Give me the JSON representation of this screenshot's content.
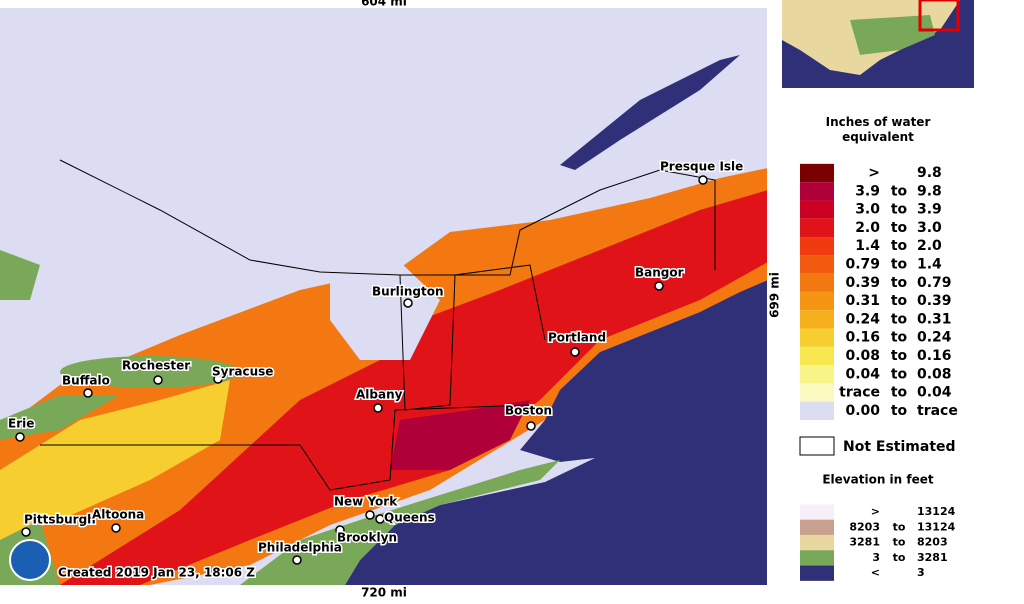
{
  "map": {
    "scale_top": "604 mi",
    "scale_bottom": "720 mi",
    "scale_right": "699 mi",
    "credit": "Created 2019 Jan 23, 18:06 Z",
    "cities": [
      "Presque Isle",
      "Bangor",
      "Burlington",
      "Portland",
      "Rochester",
      "Syracuse",
      "Buffalo",
      "Albany",
      "Boston",
      "Erie",
      "New York",
      "Queens",
      "Pittsburgh",
      "Altoona",
      "Brooklyn",
      "Philadelphia"
    ]
  },
  "legend": {
    "title": "Inches of water equivalent",
    "rows": [
      {
        "low": ">",
        "sep": "",
        "high": "9.8",
        "color": "#7a0000"
      },
      {
        "low": "3.9",
        "sep": "to",
        "high": "9.8",
        "color": "#b0003a"
      },
      {
        "low": "3.0",
        "sep": "to",
        "high": "3.9",
        "color": "#cc0022"
      },
      {
        "low": "2.0",
        "sep": "to",
        "high": "3.0",
        "color": "#e01418"
      },
      {
        "low": "1.4",
        "sep": "to",
        "high": "2.0",
        "color": "#f03a10"
      },
      {
        "low": "0.79",
        "sep": "to",
        "high": "1.4",
        "color": "#f25a10"
      },
      {
        "low": "0.39",
        "sep": "to",
        "high": "0.79",
        "color": "#f47812"
      },
      {
        "low": "0.31",
        "sep": "to",
        "high": "0.39",
        "color": "#f69414"
      },
      {
        "low": "0.24",
        "sep": "to",
        "high": "0.31",
        "color": "#f6b01e"
      },
      {
        "low": "0.16",
        "sep": "to",
        "high": "0.24",
        "color": "#f6ce30"
      },
      {
        "low": "0.08",
        "sep": "to",
        "high": "0.16",
        "color": "#f8e850"
      },
      {
        "low": "0.04",
        "sep": "to",
        "high": "0.08",
        "color": "#f8f488"
      },
      {
        "low": "trace",
        "sep": "to",
        "high": "0.04",
        "color": "#fafac0"
      },
      {
        "low": "0.00",
        "sep": "to",
        "high": "trace",
        "color": "#dcdcf2"
      }
    ],
    "not_estimated": "Not Estimated",
    "elevation_title": "Elevation in feet",
    "elevation_rows": [
      {
        "low": ">",
        "sep": "",
        "high": "13124",
        "color": "#f8f0f8"
      },
      {
        "low": "8203",
        "sep": "to",
        "high": "13124",
        "color": "#c8a090"
      },
      {
        "low": "3281",
        "sep": "to",
        "high": "8203",
        "color": "#e8d8a0"
      },
      {
        "low": "3",
        "sep": "to",
        "high": "3281",
        "color": "#78a858"
      },
      {
        "low": "<",
        "sep": "",
        "high": "3",
        "color": "#303078"
      }
    ]
  }
}
